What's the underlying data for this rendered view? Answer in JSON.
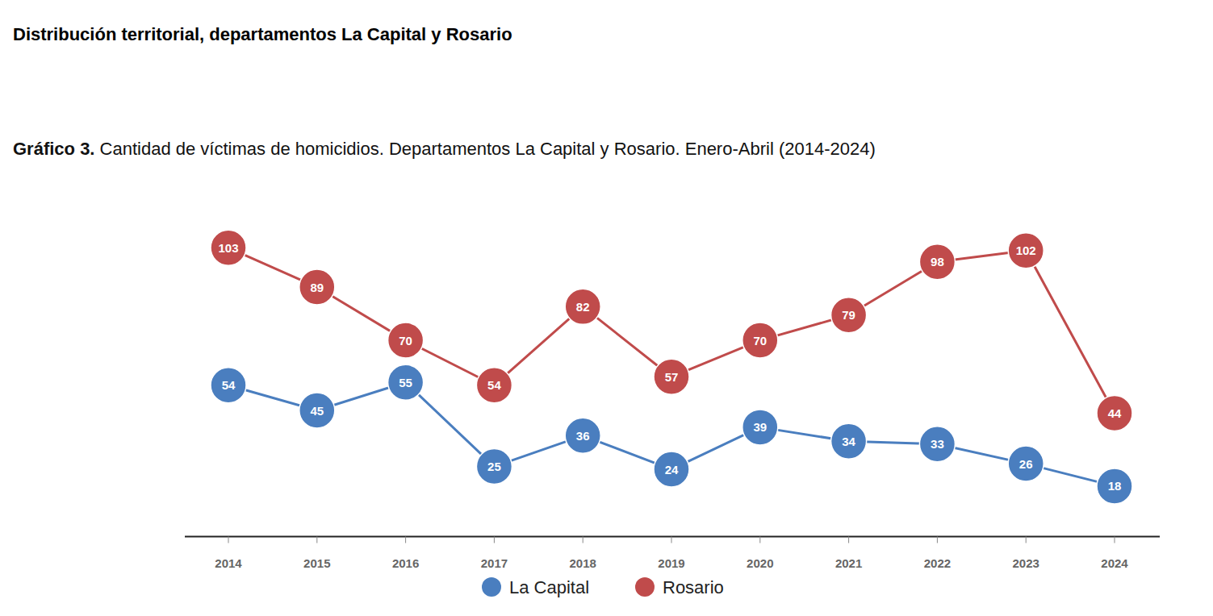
{
  "section_title": "Distribución territorial, departamentos La Capital y Rosario",
  "chart_data": {
    "type": "line",
    "figure_label": "Gráfico 3.",
    "title": "Cantidad de víctimas de homicidios. Departamentos La Capital y Rosario. Enero-Abril (2014-2024)",
    "categories": [
      "2014",
      "2015",
      "2016",
      "2017",
      "2018",
      "2019",
      "2020",
      "2021",
      "2022",
      "2023",
      "2024"
    ],
    "series": [
      {
        "name": "La Capital",
        "color": "#4a7ebf",
        "marker": "circle",
        "values": [
          54,
          45,
          55,
          25,
          36,
          24,
          39,
          34,
          33,
          26,
          18
        ]
      },
      {
        "name": "Rosario",
        "color": "#c04b4b",
        "marker": "circle",
        "values": [
          103,
          89,
          70,
          54,
          82,
          57,
          70,
          79,
          98,
          102,
          44
        ]
      }
    ],
    "ylim": [
      0,
      110
    ],
    "grid": false,
    "legend": "bottom",
    "data_labels": true,
    "tick_labels": "x"
  }
}
